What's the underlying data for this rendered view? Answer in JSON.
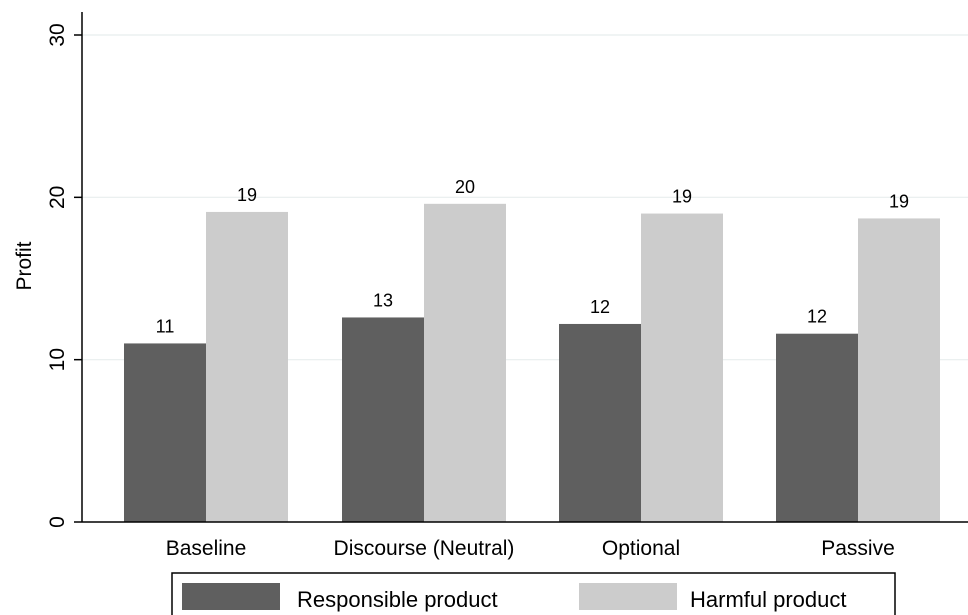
{
  "chart_data": {
    "type": "bar",
    "title": "",
    "xlabel": "",
    "ylabel": "Profit",
    "ylim": [
      0,
      30
    ],
    "yticks": [
      0,
      10,
      20,
      30
    ],
    "grid": true,
    "legend_position": "bottom",
    "categories": [
      "Baseline",
      "Discourse (Neutral)",
      "Optional",
      "Passive"
    ],
    "series": [
      {
        "name": "Responsible product",
        "color": "#5f5f5f",
        "values": [
          11.0,
          12.6,
          12.2,
          11.6
        ],
        "labels": [
          "11",
          "13",
          "12",
          "12"
        ]
      },
      {
        "name": "Harmful product",
        "color": "#cccccc",
        "values": [
          19.1,
          19.6,
          19.0,
          18.7
        ],
        "labels": [
          "19",
          "20",
          "19",
          "19"
        ]
      }
    ],
    "colors": {
      "grid": "#e8eeee",
      "axis": "#000000",
      "legend_border": "#000000"
    }
  }
}
